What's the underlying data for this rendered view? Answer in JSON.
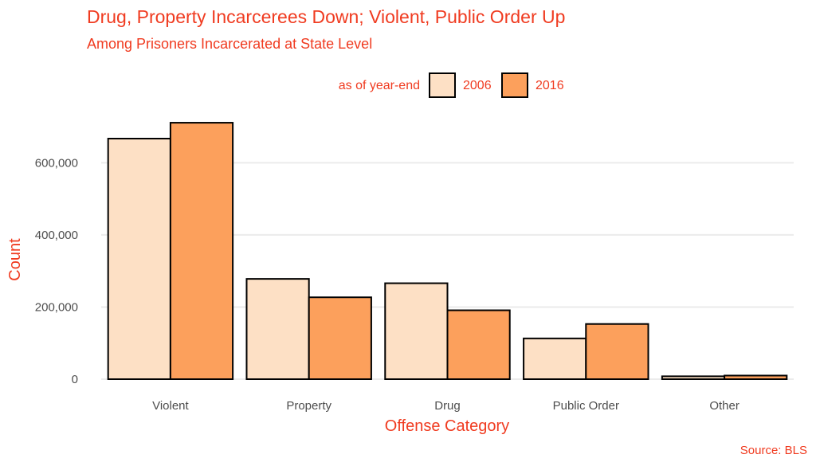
{
  "chart_data": {
    "type": "bar",
    "title": "Drug, Property Incarcerees Down; Violent, Public Order Up",
    "subtitle": "Among Prisoners Incarcerated at State Level",
    "xlabel": "Offense Category",
    "ylabel": "Count",
    "caption": "Source: BLS",
    "legend_title": "as of year-end",
    "legend_position": "top",
    "categories": [
      "Violent",
      "Property",
      "Drug",
      "Public Order",
      "Other"
    ],
    "series": [
      {
        "name": "2006",
        "color": "#fde0c5",
        "values": [
          667000,
          278000,
          266000,
          113000,
          8000
        ]
      },
      {
        "name": "2016",
        "color": "#fca05c",
        "values": [
          711000,
          227000,
          191000,
          153000,
          10000
        ]
      }
    ],
    "ylim": [
      0,
      720000
    ],
    "yticks": [
      0,
      200000,
      400000,
      600000
    ],
    "ytick_labels": [
      "0",
      "200,000",
      "400,000",
      "600,000"
    ],
    "grid": true
  }
}
